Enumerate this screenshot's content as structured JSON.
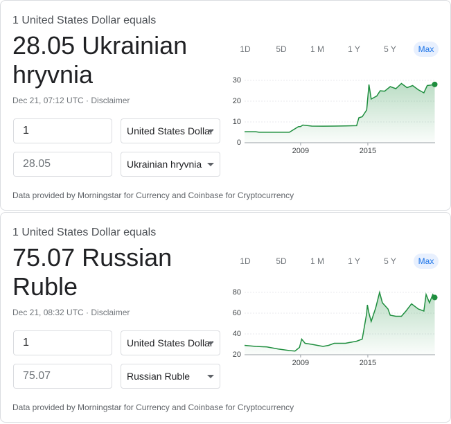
{
  "cards": [
    {
      "header": "1 United States Dollar equals",
      "headline": "28.05 Ukrainian hryvnia",
      "timestamp": "Dec 21, 07:12 UTC · Disclaimer",
      "from_amount": "1",
      "from_currency": "United States Dollar",
      "to_amount": "28.05",
      "to_currency": "Ukrainian hryvnia",
      "ranges": [
        "1D",
        "5D",
        "1 M",
        "1 Y",
        "5 Y",
        "Max"
      ],
      "selected_range": 5,
      "chart_data": {
        "type": "line",
        "x": [
          2004,
          2005,
          2005.3,
          2006,
          2007,
          2008,
          2008.8,
          2009,
          2009.2,
          2010,
          2011,
          2012,
          2013,
          2014,
          2014.2,
          2014.5,
          2014.9,
          2015.1,
          2015.3,
          2015.8,
          2016.1,
          2016.5,
          2017,
          2017.5,
          2018,
          2018.5,
          2019,
          2019.5,
          2020,
          2020.3,
          2020.6,
          2020.97
        ],
        "series": [
          {
            "color": "#1e8e3e",
            "values": [
              5.3,
              5.3,
              5.05,
              5.05,
              5.05,
              5.05,
              7.7,
              7.8,
              8.5,
              8,
              7.95,
              8,
              8.1,
              8.2,
              12,
              12.5,
              15.8,
              28,
              21,
              22.5,
              25,
              24.8,
              27,
              26,
              28.5,
              26.5,
              27.5,
              25.5,
              24,
              27.5,
              27.7,
              28.05
            ]
          }
        ],
        "xlim": [
          2004,
          2021
        ],
        "ylim": [
          0,
          33
        ],
        "xticks": [
          2009,
          2015
        ],
        "yticks": [
          0,
          10,
          20,
          30
        ],
        "grid": true
      },
      "footer": "Data provided by Morningstar for Currency and Coinbase for Cryptocurrency"
    },
    {
      "header": "1 United States Dollar equals",
      "headline": "75.07 Russian Ruble",
      "timestamp": "Dec 21, 08:32 UTC · Disclaimer",
      "from_amount": "1",
      "from_currency": "United States Dollar",
      "to_amount": "75.07",
      "to_currency": "Russian Ruble",
      "ranges": [
        "1D",
        "5D",
        "1 M",
        "1 Y",
        "5 Y",
        "Max"
      ],
      "selected_range": 5,
      "chart_data": {
        "type": "line",
        "x": [
          2004,
          2005,
          2006,
          2007,
          2008,
          2008.5,
          2008.9,
          2009.1,
          2009.4,
          2010,
          2011,
          2011.5,
          2012,
          2013,
          2014,
          2014.5,
          2014.9,
          2014.96,
          2015.1,
          2015.3,
          2015.7,
          2016.05,
          2016.3,
          2016.8,
          2017,
          2017.5,
          2018,
          2018.4,
          2018.9,
          2019.5,
          2020,
          2020.2,
          2020.5,
          2020.8,
          2020.97
        ],
        "series": [
          {
            "color": "#1e8e3e",
            "values": [
              29,
              28,
              27.5,
              25.5,
              24,
              23.5,
              27,
              35,
              31,
              30,
              28,
              29,
              31,
              31,
              33,
              35,
              60,
              68,
              60,
              52,
              65,
              80,
              70,
              64,
              58,
              57,
              57,
              62,
              69,
              64,
              62,
              78,
              70,
              78,
              75.07
            ]
          }
        ],
        "xlim": [
          2004,
          2021
        ],
        "ylim": [
          20,
          86
        ],
        "xticks": [
          2009,
          2015
        ],
        "yticks": [
          20,
          40,
          60,
          80
        ],
        "grid": true
      },
      "footer": "Data provided by Morningstar for Currency and Coinbase for Cryptocurrency"
    }
  ]
}
